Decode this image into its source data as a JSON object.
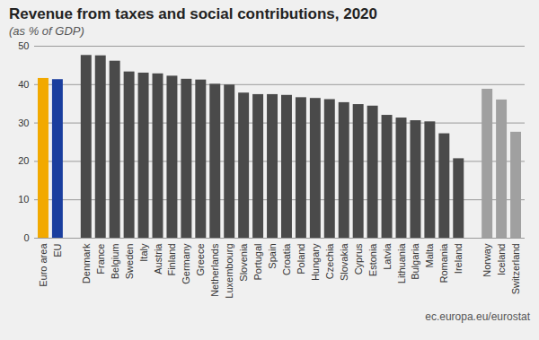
{
  "chart_data": {
    "type": "bar",
    "title": "Revenue from taxes and social contributions, 2020",
    "subtitle": "(as % of GDP)",
    "source": "ec.europa.eu/eurostat",
    "categories": [
      "Euro area",
      "EU",
      "Denmark",
      "France",
      "Belgium",
      "Sweden",
      "Italy",
      "Austria",
      "Finland",
      "Germany",
      "Greece",
      "Netherlands",
      "Luxembourg",
      "Slovenia",
      "Portugal",
      "Spain",
      "Croatia",
      "Poland",
      "Hungary",
      "Czechia",
      "Slovakia",
      "Cyprus",
      "Estonia",
      "Latvia",
      "Lithuania",
      "Bulgaria",
      "Malta",
      "Romania",
      "Ireland",
      "Norway",
      "Iceland",
      "Switzerland"
    ],
    "values": [
      41.6,
      41.3,
      47.6,
      47.5,
      46.1,
      43.3,
      43.0,
      42.8,
      42.2,
      41.4,
      41.2,
      40.1,
      39.9,
      37.8,
      37.4,
      37.4,
      37.2,
      36.6,
      36.4,
      36.1,
      35.3,
      34.8,
      34.4,
      32.0,
      31.3,
      30.6,
      30.3,
      27.2,
      20.7,
      38.8,
      36.0,
      27.6
    ],
    "colors": [
      "#f2a900",
      "#1a3e9e",
      "#4a4a4a",
      "#4a4a4a",
      "#4a4a4a",
      "#4a4a4a",
      "#4a4a4a",
      "#4a4a4a",
      "#4a4a4a",
      "#4a4a4a",
      "#4a4a4a",
      "#4a4a4a",
      "#4a4a4a",
      "#4a4a4a",
      "#4a4a4a",
      "#4a4a4a",
      "#4a4a4a",
      "#4a4a4a",
      "#4a4a4a",
      "#4a4a4a",
      "#4a4a4a",
      "#4a4a4a",
      "#4a4a4a",
      "#4a4a4a",
      "#4a4a4a",
      "#4a4a4a",
      "#4a4a4a",
      "#4a4a4a",
      "#4a4a4a",
      "#a0a0a0",
      "#a0a0a0",
      "#a0a0a0"
    ],
    "ylim": [
      0,
      50
    ],
    "yticks": [
      0,
      10,
      20,
      30,
      40,
      50
    ],
    "grid": true
  }
}
